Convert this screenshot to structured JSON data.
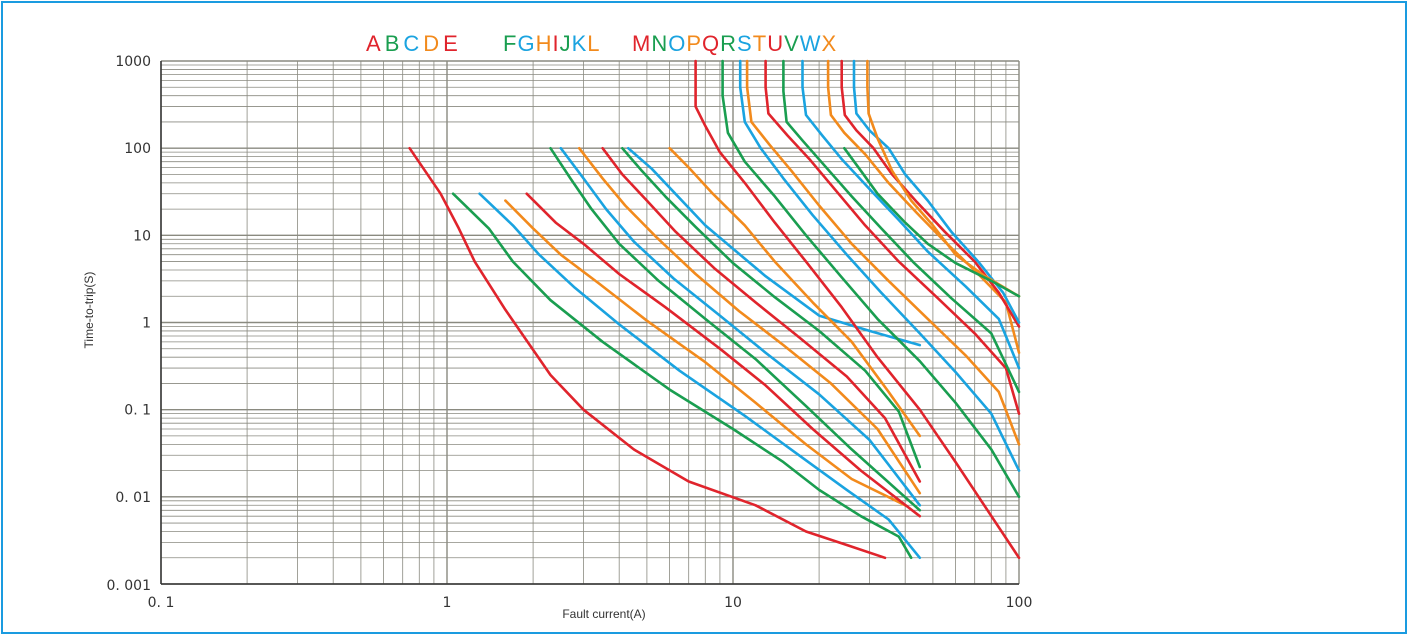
{
  "chart_data": {
    "type": "line",
    "title": "",
    "xlabel": "Fault current(A)",
    "ylabel": "Time-to-trip(S)",
    "xscale": "log",
    "yscale": "log",
    "xlim": [
      0.1,
      100
    ],
    "ylim": [
      0.001,
      1000
    ],
    "grid": true,
    "x_ticks": [
      {
        "value": 0.1,
        "label": "0. 1"
      },
      {
        "value": 1,
        "label": "1"
      },
      {
        "value": 10,
        "label": "10"
      },
      {
        "value": 100,
        "label": "100"
      }
    ],
    "y_ticks": [
      {
        "value": 1000,
        "label": "1000"
      },
      {
        "value": 100,
        "label": "100"
      },
      {
        "value": 10,
        "label": "10"
      },
      {
        "value": 1,
        "label": "1"
      },
      {
        "value": 0.1,
        "label": "0. 1"
      },
      {
        "value": 0.01,
        "label": "0. 01"
      },
      {
        "value": 0.001,
        "label": "0. 001"
      }
    ],
    "legend_groups": [
      [
        {
          "text": "A",
          "color": "#e0242c"
        },
        {
          "text": "B",
          "color": "#1a9e50"
        },
        {
          "text": "C",
          "color": "#1aa3e0"
        },
        {
          "text": "D",
          "color": "#f28a1c"
        },
        {
          "text": "E",
          "color": "#e0242c"
        }
      ],
      [
        {
          "text": "F",
          "color": "#1a9e50"
        },
        {
          "text": "G",
          "color": "#1aa3e0"
        },
        {
          "text": "H",
          "color": "#f28a1c"
        },
        {
          "text": "I",
          "color": "#e0242c"
        },
        {
          "text": "J",
          "color": "#1a9e50"
        },
        {
          "text": "K",
          "color": "#1aa3e0"
        },
        {
          "text": "L",
          "color": "#f28a1c"
        }
      ],
      [
        {
          "text": "M",
          "color": "#e0242c"
        },
        {
          "text": "N",
          "color": "#1a9e50"
        },
        {
          "text": "O",
          "color": "#1aa3e0"
        },
        {
          "text": "P",
          "color": "#f28a1c"
        },
        {
          "text": "Q",
          "color": "#e0242c"
        },
        {
          "text": "R",
          "color": "#1a9e50"
        },
        {
          "text": "S",
          "color": "#1aa3e0"
        },
        {
          "text": "T",
          "color": "#f28a1c"
        },
        {
          "text": "U",
          "color": "#e0242c"
        },
        {
          "text": "V",
          "color": "#1a9e50"
        },
        {
          "text": "W",
          "color": "#1aa3e0"
        },
        {
          "text": "X",
          "color": "#f28a1c"
        }
      ]
    ],
    "series": [
      {
        "color": "#e0242c",
        "points": [
          [
            0.74,
            100
          ],
          [
            0.95,
            30
          ],
          [
            1.1,
            12
          ],
          [
            1.25,
            5
          ],
          [
            1.6,
            1.4
          ],
          [
            2.3,
            0.25
          ],
          [
            3,
            0.1
          ],
          [
            4.5,
            0.035
          ],
          [
            7,
            0.015
          ],
          [
            12,
            0.008
          ],
          [
            18,
            0.004
          ],
          [
            25,
            0.0028
          ],
          [
            34,
            0.002
          ]
        ]
      },
      {
        "color": "#1a9e50",
        "points": [
          [
            1.05,
            30
          ],
          [
            1.4,
            12
          ],
          [
            1.7,
            5
          ],
          [
            2.3,
            1.8
          ],
          [
            3.5,
            0.6
          ],
          [
            6,
            0.17
          ],
          [
            10,
            0.06
          ],
          [
            15,
            0.025
          ],
          [
            20,
            0.012
          ],
          [
            28,
            0.006
          ],
          [
            38,
            0.0035
          ],
          [
            42,
            0.002
          ]
        ]
      },
      {
        "color": "#1aa3e0",
        "points": [
          [
            1.3,
            30
          ],
          [
            1.7,
            13
          ],
          [
            2.1,
            6
          ],
          [
            2.8,
            2.5
          ],
          [
            4,
            0.95
          ],
          [
            6.5,
            0.28
          ],
          [
            11,
            0.085
          ],
          [
            17,
            0.03
          ],
          [
            25,
            0.012
          ],
          [
            35,
            0.0055
          ],
          [
            45,
            0.002
          ]
        ]
      },
      {
        "color": "#f28a1c",
        "points": [
          [
            1.6,
            25
          ],
          [
            2,
            12
          ],
          [
            2.5,
            6
          ],
          [
            3.4,
            2.8
          ],
          [
            5,
            1.05
          ],
          [
            8,
            0.35
          ],
          [
            12,
            0.12
          ],
          [
            18,
            0.04
          ],
          [
            26,
            0.016
          ],
          [
            40,
            0.008
          ]
        ]
      },
      {
        "color": "#e0242c",
        "points": [
          [
            1.9,
            30
          ],
          [
            2.4,
            14
          ],
          [
            3,
            8
          ],
          [
            4,
            3.6
          ],
          [
            5.8,
            1.5
          ],
          [
            9,
            0.5
          ],
          [
            13,
            0.19
          ],
          [
            19,
            0.06
          ],
          [
            28,
            0.02
          ],
          [
            45,
            0.006
          ]
        ]
      },
      {
        "color": "#1a9e50",
        "points": [
          [
            2.3,
            100
          ],
          [
            2.7,
            45
          ],
          [
            3.2,
            20
          ],
          [
            4,
            8
          ],
          [
            5.5,
            3
          ],
          [
            8,
            1.1
          ],
          [
            12,
            0.38
          ],
          [
            18,
            0.11
          ],
          [
            26,
            0.035
          ],
          [
            45,
            0.007
          ]
        ]
      },
      {
        "color": "#1aa3e0",
        "points": [
          [
            2.5,
            100
          ],
          [
            3,
            45
          ],
          [
            3.6,
            20
          ],
          [
            4.5,
            8.5
          ],
          [
            6.2,
            3.2
          ],
          [
            9,
            1.2
          ],
          [
            13,
            0.45
          ],
          [
            20,
            0.15
          ],
          [
            30,
            0.045
          ],
          [
            45,
            0.008
          ]
        ]
      },
      {
        "color": "#f28a1c",
        "points": [
          [
            2.9,
            100
          ],
          [
            3.5,
            45
          ],
          [
            4.2,
            22
          ],
          [
            5.4,
            9.5
          ],
          [
            7.4,
            3.6
          ],
          [
            10.5,
            1.35
          ],
          [
            15,
            0.55
          ],
          [
            22,
            0.2
          ],
          [
            32,
            0.06
          ],
          [
            45,
            0.011
          ]
        ]
      },
      {
        "color": "#e0242c",
        "points": [
          [
            3.5,
            100
          ],
          [
            4.1,
            50
          ],
          [
            5,
            25
          ],
          [
            6.3,
            11
          ],
          [
            8.6,
            4.2
          ],
          [
            12,
            1.7
          ],
          [
            17,
            0.68
          ],
          [
            25,
            0.24
          ],
          [
            34,
            0.08
          ],
          [
            45,
            0.015
          ]
        ]
      },
      {
        "color": "#1a9e50",
        "points": [
          [
            4.1,
            100
          ],
          [
            4.8,
            55
          ],
          [
            5.8,
            28
          ],
          [
            7.4,
            12.5
          ],
          [
            10,
            4.8
          ],
          [
            14,
            1.95
          ],
          [
            20,
            0.8
          ],
          [
            29,
            0.28
          ],
          [
            38,
            0.095
          ],
          [
            45,
            0.022
          ]
        ]
      },
      {
        "color": "#1aa3e0",
        "points": [
          [
            4.3,
            100
          ],
          [
            5.2,
            58
          ],
          [
            8,
            13
          ],
          [
            13,
            3.4
          ],
          [
            20,
            1.2
          ],
          [
            30,
            0.8
          ],
          [
            45,
            0.55
          ]
        ]
      },
      {
        "color": "#f28a1c",
        "points": [
          [
            6,
            100
          ],
          [
            7,
            60
          ],
          [
            8.5,
            30
          ],
          [
            11,
            13
          ],
          [
            14,
            5
          ],
          [
            19,
            1.7
          ],
          [
            26,
            0.6
          ],
          [
            35,
            0.16
          ],
          [
            45,
            0.05
          ]
        ]
      },
      {
        "color": "#e0242c",
        "points": [
          [
            7.4,
            1000
          ],
          [
            7.4,
            300
          ],
          [
            8,
            180
          ],
          [
            9,
            90
          ],
          [
            11,
            40
          ],
          [
            14,
            14
          ],
          [
            18,
            5
          ],
          [
            24,
            1.5
          ],
          [
            32,
            0.4
          ],
          [
            45,
            0.1
          ],
          [
            60,
            0.025
          ],
          [
            100,
            0.002
          ]
        ]
      },
      {
        "color": "#1a9e50",
        "points": [
          [
            9.2,
            1000
          ],
          [
            9.2,
            400
          ],
          [
            9.6,
            150
          ],
          [
            11,
            70
          ],
          [
            14,
            28
          ],
          [
            18,
            10
          ],
          [
            24,
            3.3
          ],
          [
            32,
            1.1
          ],
          [
            45,
            0.36
          ],
          [
            60,
            0.12
          ],
          [
            80,
            0.035
          ],
          [
            100,
            0.01
          ]
        ]
      },
      {
        "color": "#1aa3e0",
        "points": [
          [
            10.6,
            1000
          ],
          [
            10.6,
            500
          ],
          [
            11,
            200
          ],
          [
            12.5,
            100
          ],
          [
            15,
            45
          ],
          [
            19,
            17
          ],
          [
            25,
            6
          ],
          [
            33,
            2.2
          ],
          [
            45,
            0.75
          ],
          [
            60,
            0.27
          ],
          [
            80,
            0.09
          ],
          [
            100,
            0.02
          ]
        ]
      },
      {
        "color": "#f28a1c",
        "points": [
          [
            11.2,
            1000
          ],
          [
            11.2,
            500
          ],
          [
            11.6,
            200
          ],
          [
            13.4,
            110
          ],
          [
            16,
            55
          ],
          [
            20,
            22
          ],
          [
            26,
            8
          ],
          [
            35,
            3
          ],
          [
            48,
            1.1
          ],
          [
            65,
            0.42
          ],
          [
            85,
            0.16
          ],
          [
            100,
            0.04
          ]
        ]
      },
      {
        "color": "#e0242c",
        "points": [
          [
            13,
            1000
          ],
          [
            13,
            500
          ],
          [
            13.3,
            250
          ],
          [
            15.5,
            140
          ],
          [
            18.5,
            75
          ],
          [
            23,
            32
          ],
          [
            29,
            13
          ],
          [
            38,
            5
          ],
          [
            52,
            1.9
          ],
          [
            70,
            0.75
          ],
          [
            90,
            0.3
          ],
          [
            100,
            0.09
          ]
        ]
      },
      {
        "color": "#1a9e50",
        "points": [
          [
            15,
            1000
          ],
          [
            15,
            450
          ],
          [
            15.4,
            200
          ],
          [
            17.6,
            120
          ],
          [
            21,
            62
          ],
          [
            26,
            28
          ],
          [
            33,
            12
          ],
          [
            43,
            4.8
          ],
          [
            58,
            1.9
          ],
          [
            80,
            0.75
          ],
          [
            100,
            0.16
          ]
        ]
      },
      {
        "color": "#1aa3e0",
        "points": [
          [
            17.5,
            1000
          ],
          [
            17.5,
            500
          ],
          [
            18,
            240
          ],
          [
            20.5,
            140
          ],
          [
            24,
            75
          ],
          [
            30,
            34
          ],
          [
            38,
            15
          ],
          [
            48,
            6.5
          ],
          [
            65,
            2.6
          ],
          [
            85,
            1.1
          ],
          [
            100,
            0.3
          ]
        ]
      },
      {
        "color": "#f28a1c",
        "points": [
          [
            21.5,
            1000
          ],
          [
            21.5,
            500
          ],
          [
            22,
            240
          ],
          [
            24.5,
            150
          ],
          [
            29,
            85
          ],
          [
            35,
            40
          ],
          [
            44,
            18
          ],
          [
            55,
            8.5
          ],
          [
            72,
            3.6
          ],
          [
            90,
            1.7
          ],
          [
            100,
            0.45
          ]
        ]
      },
      {
        "color": "#e0242c",
        "points": [
          [
            24,
            1000
          ],
          [
            24,
            500
          ],
          [
            24.6,
            240
          ],
          [
            27,
            160
          ],
          [
            31,
            100
          ],
          [
            36,
            50
          ],
          [
            44,
            24
          ],
          [
            55,
            11
          ],
          [
            70,
            5
          ],
          [
            85,
            2.2
          ],
          [
            100,
            0.9
          ]
        ]
      },
      {
        "color": "#1aa3e0",
        "points": [
          [
            26.5,
            1000
          ],
          [
            26.5,
            500
          ],
          [
            27,
            250
          ],
          [
            30,
            160
          ],
          [
            35,
            100
          ],
          [
            40,
            50
          ],
          [
            48,
            25
          ],
          [
            58,
            11
          ],
          [
            72,
            5
          ],
          [
            88,
            2.2
          ],
          [
            100,
            1
          ]
        ]
      },
      {
        "color": "#f28a1c",
        "points": [
          [
            29.5,
            1000
          ],
          [
            29.5,
            500
          ],
          [
            29.8,
            250
          ],
          [
            32,
            130
          ],
          [
            36,
            55
          ],
          [
            42,
            25
          ],
          [
            50,
            13
          ],
          [
            60,
            6
          ],
          [
            75,
            3.5
          ],
          [
            100,
            2
          ]
        ]
      },
      {
        "color": "#1a9e50",
        "points": [
          [
            24.5,
            100
          ],
          [
            28,
            55
          ],
          [
            32,
            30
          ],
          [
            40,
            14
          ],
          [
            48,
            8
          ],
          [
            60,
            4.8
          ],
          [
            80,
            3
          ],
          [
            100,
            2
          ]
        ]
      }
    ]
  }
}
